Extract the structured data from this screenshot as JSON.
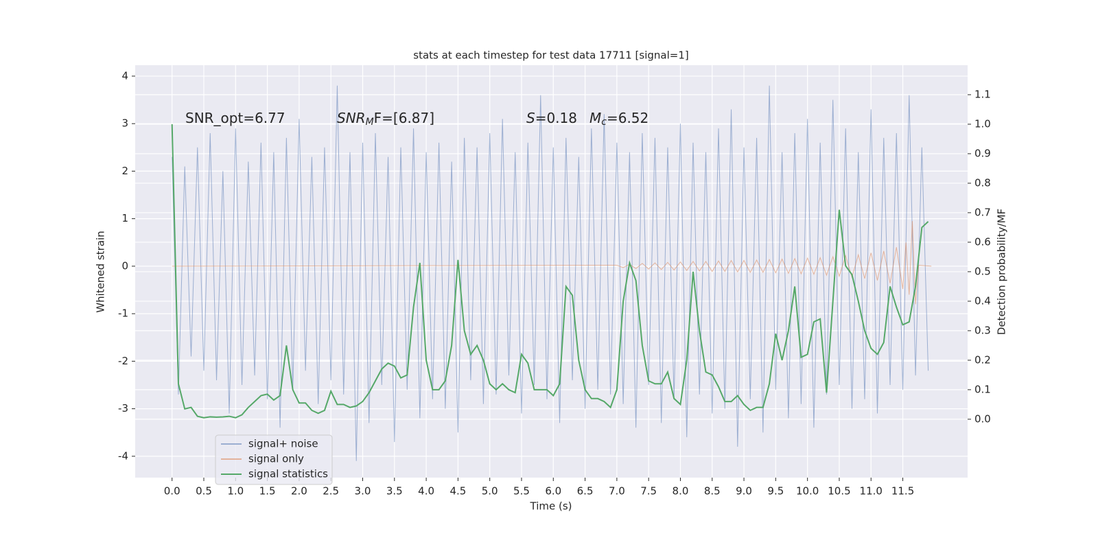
{
  "chart_data": {
    "type": "line",
    "title": "stats at each timestep for test data 17711 [signal=1]",
    "xlabel": "Time (s)",
    "ylabel": "Whitened strain",
    "y2label": "Detection probability/MF",
    "annotations": [
      [
        "SNR_opt=6.77"
      ],
      [
        "SNR",
        "M",
        "F=[6.87]"
      ],
      [
        "S",
        "=0.18"
      ],
      [
        "M",
        "c",
        "=6.52"
      ]
    ],
    "xlim": [
      -0.58,
      12.52
    ],
    "ylim": [
      -4.45,
      4.23
    ],
    "y2lim": [
      -0.198,
      1.2
    ],
    "xticks": [
      {
        "value": 0,
        "label": "0.0"
      },
      0.5,
      {
        "value": 1,
        "label": "1.0"
      },
      1.5,
      {
        "value": 2,
        "label": "2.0"
      },
      2.5,
      {
        "value": 3,
        "label": "3.0"
      },
      3.5,
      {
        "value": 4,
        "label": "4.0"
      },
      4.5,
      {
        "value": 5,
        "label": "5.0"
      },
      5.5,
      {
        "value": 6,
        "label": "6.0"
      },
      6.5,
      {
        "value": 7,
        "label": "7.0"
      },
      7.5,
      {
        "value": 8,
        "label": "8.0"
      },
      8.5,
      {
        "value": 9,
        "label": "9.0"
      },
      9.5,
      {
        "value": 10,
        "label": "10.0"
      },
      10.5,
      {
        "value": 11,
        "label": "11.0"
      },
      11.5
    ],
    "yticks": [
      -4,
      -3,
      -2,
      -1,
      0,
      1,
      2,
      3,
      4
    ],
    "y2ticks": [
      {
        "value": 0,
        "label": "0.0"
      },
      0.1,
      0.2,
      0.3,
      0.4,
      0.5,
      0.6,
      0.7,
      0.8,
      0.9,
      {
        "value": 1,
        "label": "1.0"
      },
      1.1
    ],
    "grid": true,
    "legend": "lower left",
    "series": [
      {
        "name": "signal+ noise",
        "color": "#4c72b0",
        "axis": "y",
        "x": [
          0.0,
          0.1,
          0.2,
          0.3,
          0.4,
          0.5,
          0.6,
          0.7,
          0.8,
          0.9,
          1.0,
          1.1,
          1.2,
          1.3,
          1.4,
          1.5,
          1.6,
          1.7,
          1.8,
          1.9,
          2.0,
          2.1,
          2.2,
          2.3,
          2.4,
          2.5,
          2.6,
          2.7,
          2.8,
          2.9,
          3.0,
          3.1,
          3.2,
          3.3,
          3.4,
          3.5,
          3.6,
          3.7,
          3.8,
          3.9,
          4.0,
          4.1,
          4.2,
          4.3,
          4.4,
          4.5,
          4.6,
          4.7,
          4.8,
          4.9,
          5.0,
          5.1,
          5.2,
          5.3,
          5.4,
          5.5,
          5.6,
          5.7,
          5.8,
          5.9,
          6.0,
          6.1,
          6.2,
          6.3,
          6.4,
          6.5,
          6.6,
          6.7,
          6.8,
          6.9,
          7.0,
          7.1,
          7.2,
          7.3,
          7.4,
          7.5,
          7.6,
          7.7,
          7.8,
          7.9,
          8.0,
          8.1,
          8.2,
          8.3,
          8.4,
          8.5,
          8.6,
          8.7,
          8.8,
          8.9,
          9.0,
          9.1,
          9.2,
          9.3,
          9.4,
          9.5,
          9.6,
          9.7,
          9.8,
          9.9,
          10.0,
          10.1,
          10.2,
          10.3,
          10.4,
          10.5,
          10.6,
          10.7,
          10.8,
          10.9,
          11.0,
          11.1,
          11.2,
          11.3,
          11.4,
          11.5,
          11.6,
          11.7,
          11.8,
          11.9
        ],
        "values": [
          2.3,
          -2.7,
          2.1,
          -1.9,
          2.5,
          -2.2,
          2.8,
          -2.4,
          2.0,
          -3.1,
          2.9,
          -2.5,
          2.2,
          -2.3,
          2.6,
          -2.8,
          2.4,
          -3.4,
          2.7,
          -2.6,
          3.1,
          -2.2,
          2.3,
          -2.9,
          2.5,
          -2.4,
          3.8,
          -2.7,
          2.4,
          -4.1,
          2.6,
          -3.3,
          2.8,
          -2.5,
          2.3,
          -3.7,
          2.5,
          -2.6,
          2.9,
          -3.2,
          2.4,
          -2.8,
          2.6,
          -3.0,
          2.2,
          -3.5,
          2.7,
          -2.4,
          2.5,
          -2.9,
          2.8,
          -2.7,
          3.1,
          -2.3,
          2.4,
          -3.1,
          2.6,
          -2.5,
          3.6,
          -2.8,
          2.5,
          -3.3,
          2.7,
          -2.4,
          2.3,
          -3.0,
          2.9,
          -2.6,
          3.2,
          -2.7,
          2.6,
          -2.9,
          2.4,
          -3.4,
          2.8,
          -2.5,
          2.7,
          -3.3,
          2.5,
          -2.8,
          3.0,
          -3.6,
          2.6,
          -2.7,
          2.4,
          -3.1,
          2.9,
          -3.0,
          3.3,
          -3.8,
          2.5,
          -2.8,
          2.7,
          -3.5,
          3.8,
          -2.6,
          2.4,
          -3.2,
          2.8,
          -2.9,
          3.1,
          -3.4,
          2.6,
          -2.7,
          3.5,
          -2.5,
          2.9,
          -3.0,
          2.4,
          -2.8,
          3.3,
          -3.1,
          2.7,
          -2.5,
          2.8,
          -2.6,
          3.6,
          -2.3,
          2.5,
          -2.2
        ]
      },
      {
        "name": "signal only",
        "color": "#dd8452",
        "axis": "y",
        "x": [
          0.0,
          7.0,
          7.1,
          7.2,
          7.3,
          7.4,
          7.5,
          7.6,
          7.7,
          7.8,
          7.9,
          8.0,
          8.1,
          8.2,
          8.3,
          8.4,
          8.5,
          8.6,
          8.7,
          8.8,
          8.9,
          9.0,
          9.1,
          9.2,
          9.3,
          9.4,
          9.5,
          9.6,
          9.7,
          9.8,
          9.9,
          10.0,
          10.1,
          10.2,
          10.3,
          10.4,
          10.5,
          10.6,
          10.7,
          10.8,
          10.9,
          11.0,
          11.1,
          11.2,
          11.3,
          11.4,
          11.5,
          11.55,
          11.6,
          11.65,
          11.7,
          11.75,
          11.95
        ],
        "values": [
          0,
          0.02,
          -0.03,
          0.04,
          -0.05,
          0.06,
          -0.06,
          0.07,
          -0.07,
          0.08,
          -0.08,
          0.09,
          -0.09,
          0.1,
          -0.1,
          0.1,
          -0.11,
          0.11,
          -0.11,
          0.12,
          -0.12,
          0.12,
          -0.13,
          0.13,
          -0.13,
          0.14,
          -0.14,
          0.15,
          -0.15,
          0.16,
          -0.16,
          0.17,
          -0.17,
          0.18,
          -0.19,
          0.2,
          -0.21,
          0.22,
          -0.23,
          0.24,
          -0.26,
          0.28,
          -0.3,
          0.32,
          -0.36,
          0.4,
          -0.48,
          0.5,
          -0.6,
          0.95,
          -0.8,
          0.02,
          0
        ]
      },
      {
        "name": "signal statistics",
        "color": "#55a868",
        "axis": "y2",
        "x": [
          0.0,
          0.1,
          0.2,
          0.3,
          0.4,
          0.5,
          0.6,
          0.7,
          0.8,
          0.9,
          1.0,
          1.1,
          1.2,
          1.3,
          1.4,
          1.5,
          1.6,
          1.7,
          1.8,
          1.9,
          2.0,
          2.1,
          2.2,
          2.3,
          2.4,
          2.5,
          2.6,
          2.7,
          2.8,
          2.9,
          3.0,
          3.1,
          3.2,
          3.3,
          3.4,
          3.5,
          3.6,
          3.7,
          3.8,
          3.9,
          4.0,
          4.1,
          4.2,
          4.3,
          4.4,
          4.5,
          4.6,
          4.7,
          4.8,
          4.9,
          5.0,
          5.1,
          5.2,
          5.3,
          5.4,
          5.5,
          5.6,
          5.7,
          5.8,
          5.9,
          6.0,
          6.1,
          6.2,
          6.3,
          6.4,
          6.5,
          6.6,
          6.7,
          6.8,
          6.9,
          7.0,
          7.1,
          7.2,
          7.3,
          7.4,
          7.5,
          7.6,
          7.7,
          7.8,
          7.9,
          8.0,
          8.1,
          8.2,
          8.3,
          8.4,
          8.5,
          8.6,
          8.7,
          8.8,
          8.9,
          9.0,
          9.1,
          9.2,
          9.3,
          9.4,
          9.5,
          9.6,
          9.7,
          9.8,
          9.9,
          10.0,
          10.1,
          10.2,
          10.3,
          10.4,
          10.5,
          10.6,
          10.7,
          10.8,
          10.9,
          11.0,
          11.1,
          11.2,
          11.3,
          11.4,
          11.5,
          11.6,
          11.7,
          11.8,
          11.9
        ],
        "values": [
          1.0,
          0.12,
          0.035,
          0.04,
          0.01,
          0.005,
          0.008,
          0.007,
          0.008,
          0.01,
          0.005,
          0.015,
          0.04,
          0.06,
          0.08,
          0.085,
          0.065,
          0.08,
          0.25,
          0.1,
          0.055,
          0.055,
          0.03,
          0.02,
          0.03,
          0.095,
          0.05,
          0.05,
          0.04,
          0.045,
          0.06,
          0.09,
          0.13,
          0.17,
          0.19,
          0.18,
          0.14,
          0.15,
          0.38,
          0.53,
          0.2,
          0.1,
          0.1,
          0.13,
          0.25,
          0.54,
          0.3,
          0.22,
          0.25,
          0.2,
          0.12,
          0.1,
          0.12,
          0.1,
          0.09,
          0.22,
          0.19,
          0.1,
          0.1,
          0.1,
          0.08,
          0.12,
          0.45,
          0.42,
          0.2,
          0.1,
          0.07,
          0.07,
          0.06,
          0.04,
          0.1,
          0.4,
          0.53,
          0.47,
          0.25,
          0.13,
          0.12,
          0.12,
          0.16,
          0.07,
          0.05,
          0.2,
          0.5,
          0.3,
          0.16,
          0.15,
          0.11,
          0.06,
          0.06,
          0.08,
          0.05,
          0.03,
          0.04,
          0.04,
          0.12,
          0.29,
          0.2,
          0.3,
          0.45,
          0.21,
          0.22,
          0.33,
          0.34,
          0.09,
          0.4,
          0.71,
          0.52,
          0.49,
          0.4,
          0.3,
          0.24,
          0.22,
          0.26,
          0.45,
          0.38,
          0.32,
          0.33,
          0.45,
          0.65,
          0.67
        ]
      }
    ]
  }
}
